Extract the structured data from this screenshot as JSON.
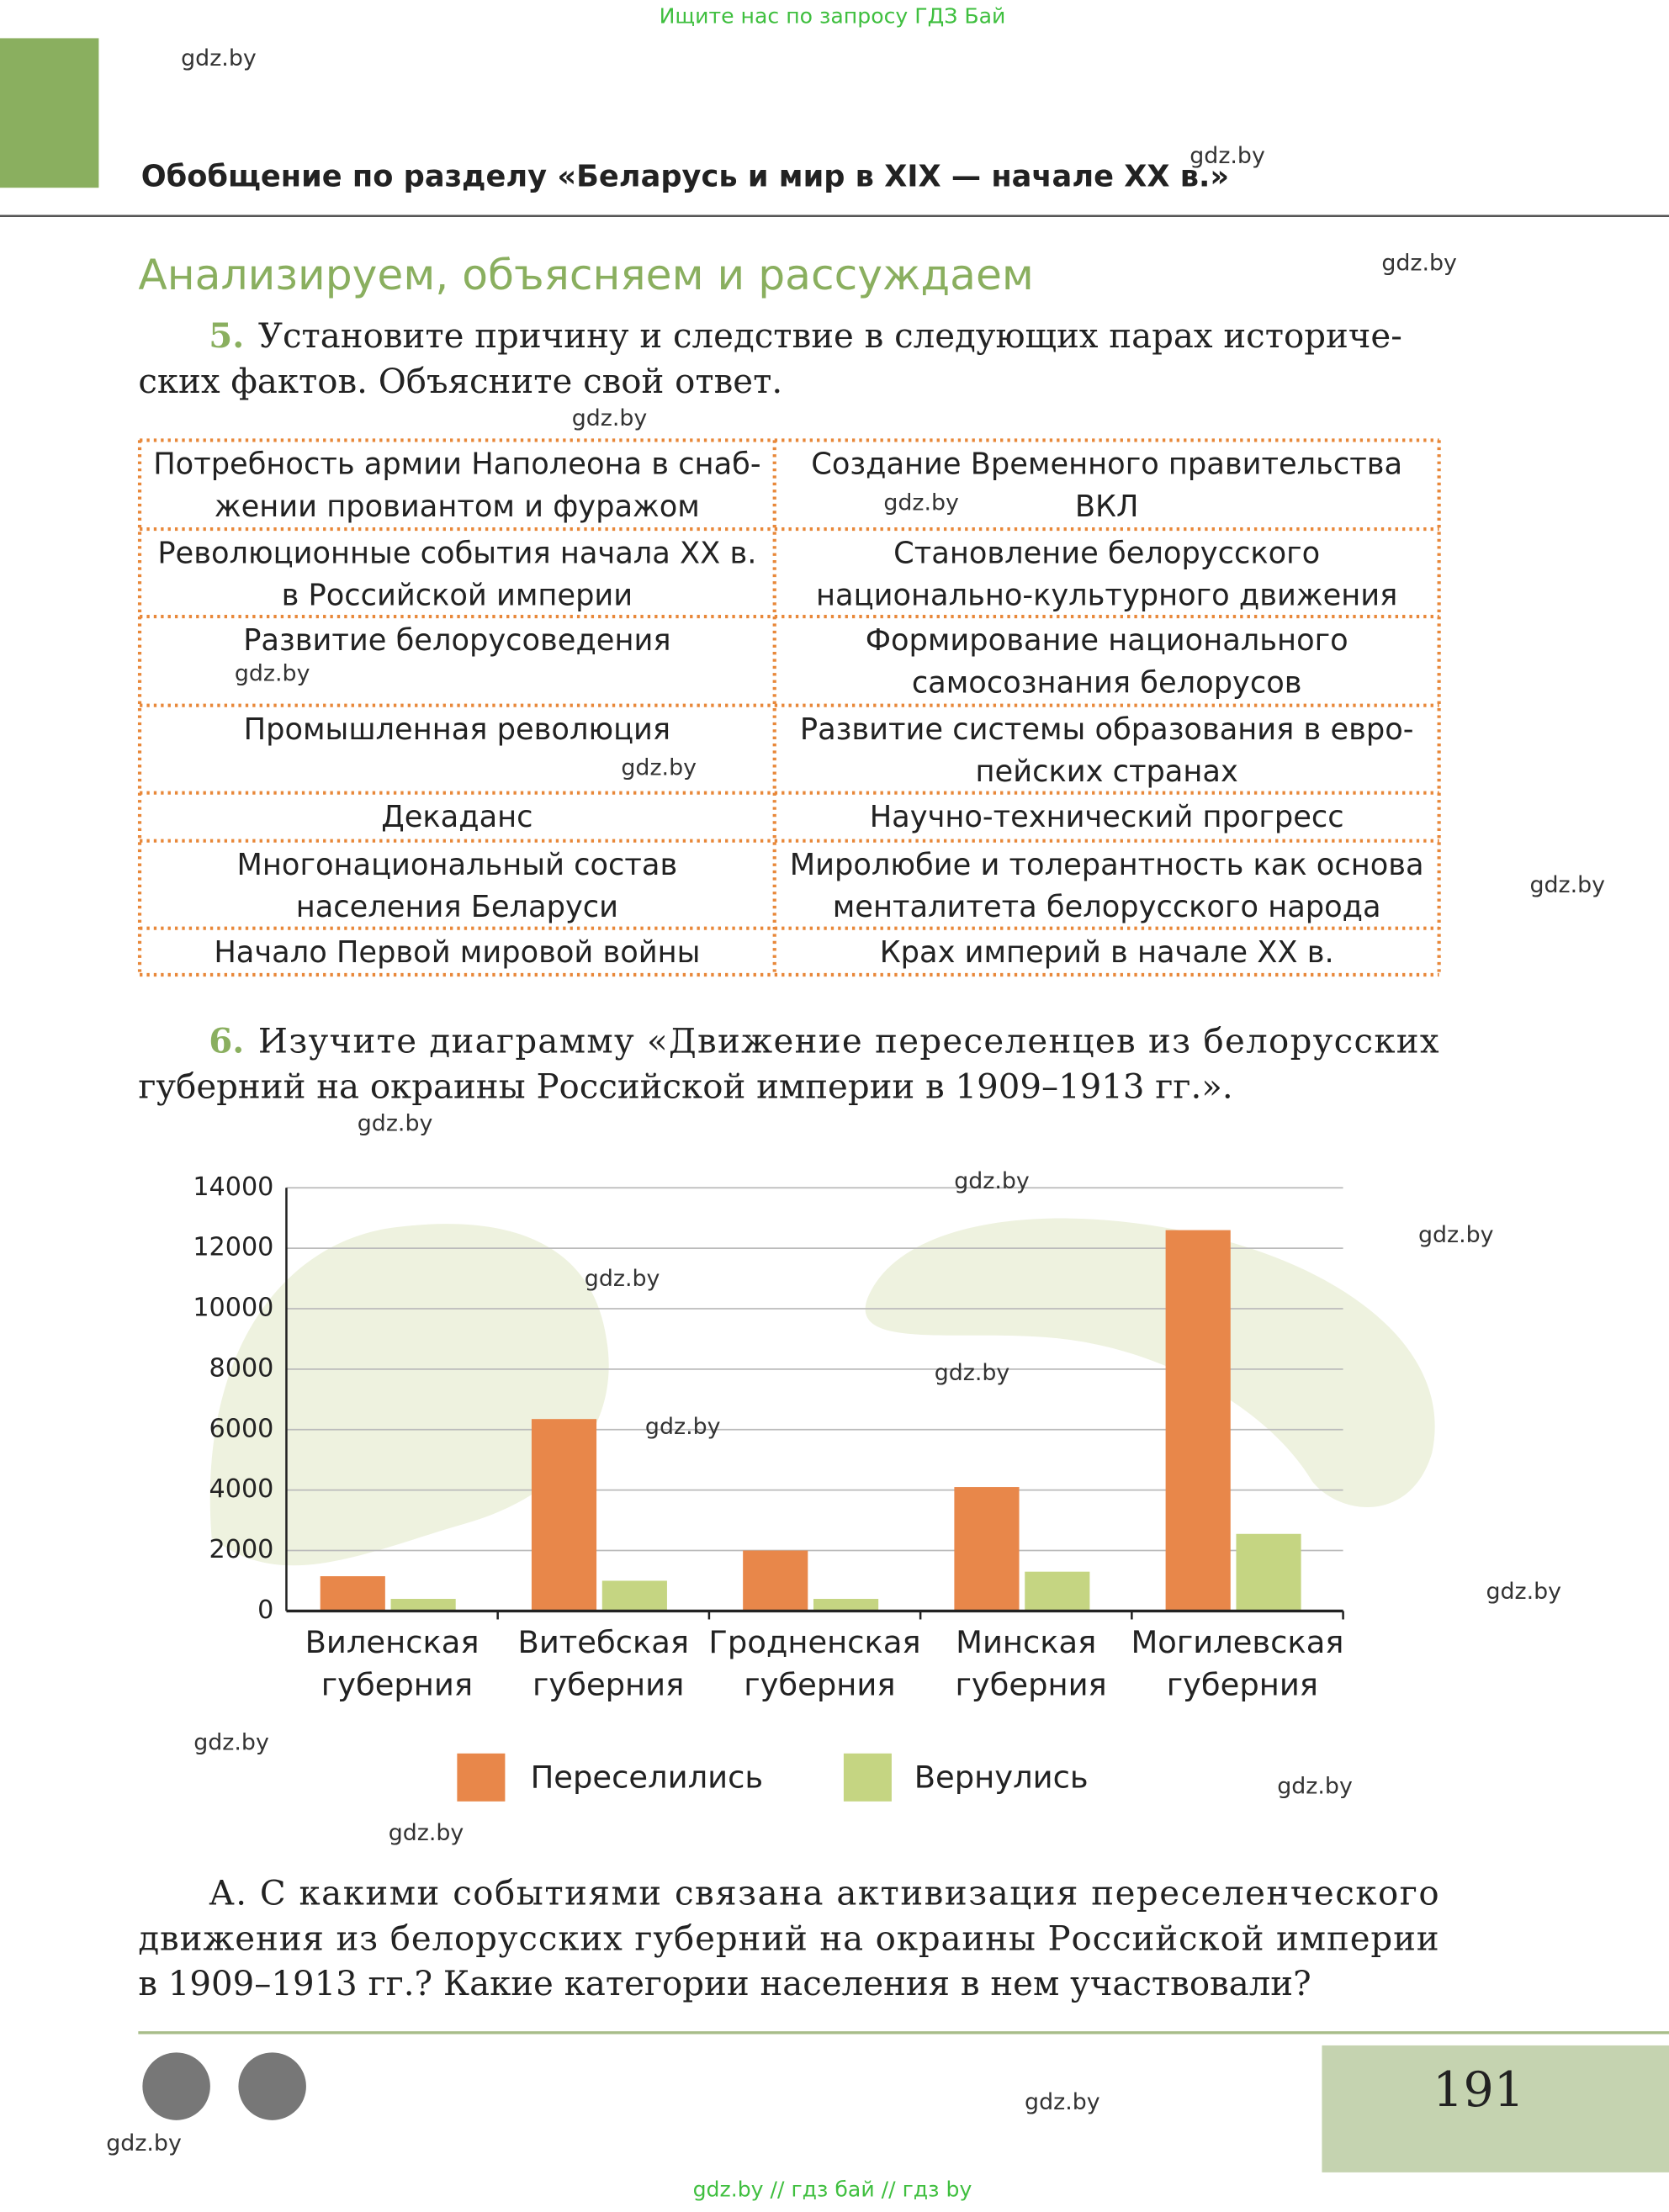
{
  "banner": "Ищите нас по запросу ГДЗ Бай",
  "header": {
    "title": "Обобщение по разделу «Беларусь и мир в XIX — начале XX в.»"
  },
  "section_title": "Анализируем, объясняем и рассуждаем",
  "task5": {
    "number": "5.",
    "lines": [
      "Установите причину и следствие в следующих парах историче-",
      "ских фактов. Объясните свой ответ."
    ]
  },
  "table": {
    "rows": [
      [
        [
          "Потребность армии Наполеона в снаб-",
          "жении провиантом и фуражом"
        ],
        [
          "Создание Временного правительства",
          "ВКЛ"
        ]
      ],
      [
        [
          "Революционные события начала XX в.",
          "в Российской империи"
        ],
        [
          "Становление белорусского",
          "национально-культурного движения"
        ]
      ],
      [
        [
          "Развитие белорусоведения"
        ],
        [
          "Формирование национального",
          "самосознания белорусов"
        ]
      ],
      [
        [
          "Промышленная революция"
        ],
        [
          "Развитие системы образования в евро-",
          "пейских странах"
        ]
      ],
      [
        [
          "Декаданс"
        ],
        [
          "Научно-технический прогресс"
        ]
      ],
      [
        [
          "Многонациональный состав",
          "населения Беларуси"
        ],
        [
          "Миролюбие и толерантность как основа",
          "менталитета белорусского народа"
        ]
      ],
      [
        [
          "Начало Первой мировой войны"
        ],
        [
          "Крах империй в начале XX в."
        ]
      ]
    ]
  },
  "task6": {
    "number": "6.",
    "lines": [
      "Изучите диаграмму «Движение переселенцев из белорусских",
      "губерний на окраины Российской империи в 1909–1913 гг.»."
    ]
  },
  "chart_data": {
    "type": "bar",
    "categories": [
      "Виленская губерния",
      "Витебская губерния",
      "Гродненская губерния",
      "Минская губерния",
      "Могилевская губерния"
    ],
    "series": [
      {
        "name": "Переселились",
        "color": "#e8874a",
        "values": [
          1150,
          6350,
          2000,
          4100,
          12600
        ]
      },
      {
        "name": "Вернулись",
        "color": "#c5d582",
        "values": [
          400,
          1000,
          400,
          1300,
          2550
        ]
      }
    ],
    "ylim": [
      0,
      14000
    ],
    "yticks": [
      0,
      2000,
      4000,
      6000,
      8000,
      10000,
      12000,
      14000
    ],
    "grid": true,
    "legend": "bottom"
  },
  "question_a": {
    "lines": [
      "А. С какими событиями связана активизация переселенческого",
      "движения из белорусских губерний на окраины Российской империи",
      "в 1909–1913 гг.? Какие категории населения в нем участвовали?"
    ]
  },
  "page_number": "191",
  "watermarks": [
    "gdz.by",
    "gdz.by",
    "gdz.by",
    "gdz.by",
    "gdz.by",
    "gdz.by",
    "gdz.by",
    "gdz.by",
    "gdz.by",
    "gdz.by",
    "gdz.by",
    "gdz.by",
    "gdz.by",
    "gdz.by",
    "gdz.by",
    "gdz.by",
    "gdz.by",
    "gdz.by",
    "gdz.by",
    "gdz.by"
  ],
  "footer": "gdz.by  //  гдз бай  //  гдз by"
}
